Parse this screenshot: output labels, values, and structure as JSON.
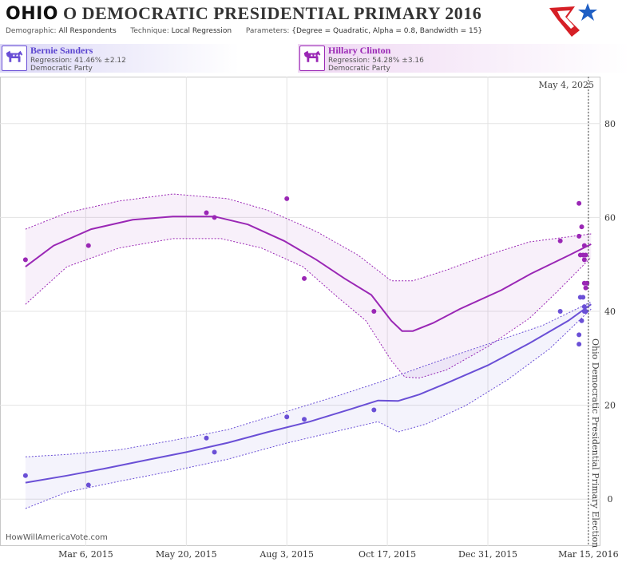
{
  "header": {
    "state": "OHIO",
    "title_rest": "O DEMOCRATIC PRESIDENTIAL PRIMARY 2016",
    "demographic_label": "Demographic:",
    "demographic_value": "All Respondents",
    "technique_label": "Technique:",
    "technique_value": "Local Regression",
    "parameters_label": "Parameters:",
    "parameters_value": "{Degree = Quadratic, Alpha = 0.8, Bandwidth = 15}"
  },
  "candidates": [
    {
      "name": "Bernie Sanders",
      "regression": "Regression: 41.46% ±2.12",
      "party": "Democratic Party",
      "color": "#6a4fd6"
    },
    {
      "name": "Hillary Clinton",
      "regression": "Regression: 54.28% ±3.16",
      "party": "Democratic Party",
      "color": "#9a27b5"
    }
  ],
  "watermark": "HowWillAmericaVote.com",
  "logo_icon": "flag-star-logo-icon",
  "chart_data": {
    "type": "line",
    "x_axis": {
      "type": "date",
      "ticks": [
        "Mar 6, 2015",
        "May 20, 2015",
        "Aug 3, 2015",
        "Oct 17, 2015",
        "Dec 31, 2015",
        "Mar 15, 2016"
      ]
    },
    "y_axis": {
      "position": "right",
      "ylim": [
        -10,
        90
      ],
      "ticks": [
        0,
        20,
        40,
        60,
        80
      ],
      "grid": true
    },
    "annotations": {
      "today_label": "May 4, 2025",
      "election_label": "Ohio Democratic Presidential Primary Election",
      "election_date": "2016-03-15"
    },
    "series": [
      {
        "name": "Hillary Clinton",
        "color": "#9a27b5",
        "trend": [
          [
            "2015-01-20",
            49.5
          ],
          [
            "2015-02-10",
            54
          ],
          [
            "2015-03-10",
            57.5
          ],
          [
            "2015-04-10",
            59.5
          ],
          [
            "2015-05-10",
            60.2
          ],
          [
            "2015-06-10",
            60.2
          ],
          [
            "2015-07-05",
            58.5
          ],
          [
            "2015-08-01",
            55
          ],
          [
            "2015-08-25",
            51
          ],
          [
            "2015-09-15",
            47
          ],
          [
            "2015-10-05",
            43.5
          ],
          [
            "2015-10-20",
            38
          ],
          [
            "2015-10-28",
            35.8
          ],
          [
            "2015-11-05",
            35.8
          ],
          [
            "2015-11-20",
            37.5
          ],
          [
            "2015-12-10",
            40.5
          ],
          [
            "2016-01-10",
            44.5
          ],
          [
            "2016-02-01",
            48
          ],
          [
            "2016-03-01",
            52
          ],
          [
            "2016-03-17",
            54.3
          ]
        ],
        "upper": [
          [
            "2015-01-20",
            57.5
          ],
          [
            "2015-02-20",
            61
          ],
          [
            "2015-03-31",
            63.5
          ],
          [
            "2015-05-10",
            65
          ],
          [
            "2015-06-20",
            64
          ],
          [
            "2015-07-20",
            61.5
          ],
          [
            "2015-08-25",
            57
          ],
          [
            "2015-09-25",
            52
          ],
          [
            "2015-10-20",
            46.5
          ],
          [
            "2015-11-05",
            46.5
          ],
          [
            "2015-11-30",
            48.8
          ],
          [
            "2015-12-31",
            52
          ],
          [
            "2016-01-31",
            54.8
          ],
          [
            "2016-03-17",
            56.5
          ]
        ],
        "lower": [
          [
            "2015-01-20",
            41.5
          ],
          [
            "2015-02-20",
            49.5
          ],
          [
            "2015-03-31",
            53.5
          ],
          [
            "2015-05-10",
            55.5
          ],
          [
            "2015-06-15",
            55.5
          ],
          [
            "2015-07-15",
            53.5
          ],
          [
            "2015-08-15",
            49.5
          ],
          [
            "2015-09-10",
            43
          ],
          [
            "2015-10-01",
            38
          ],
          [
            "2015-10-20",
            29.5
          ],
          [
            "2015-10-30",
            26
          ],
          [
            "2015-11-10",
            25.8
          ],
          [
            "2015-11-30",
            27.5
          ],
          [
            "2015-12-31",
            32.5
          ],
          [
            "2016-01-31",
            38.5
          ],
          [
            "2016-02-20",
            44
          ],
          [
            "2016-03-17",
            51.5
          ]
        ],
        "points": [
          [
            "2015-01-20",
            51
          ],
          [
            "2015-03-08",
            54
          ],
          [
            "2015-06-04",
            61
          ],
          [
            "2015-06-10",
            60
          ],
          [
            "2015-08-03",
            64
          ],
          [
            "2015-08-16",
            47
          ],
          [
            "2015-10-07",
            40
          ],
          [
            "2016-02-23",
            55
          ],
          [
            "2016-03-08",
            63
          ],
          [
            "2016-03-08",
            56
          ],
          [
            "2016-03-09",
            52
          ],
          [
            "2016-03-10",
            58
          ],
          [
            "2016-03-11",
            52
          ],
          [
            "2016-03-12",
            54
          ],
          [
            "2016-03-12",
            51
          ],
          [
            "2016-03-12",
            46
          ],
          [
            "2016-03-13",
            45
          ],
          [
            "2016-03-13",
            52
          ],
          [
            "2016-03-14",
            46
          ]
        ]
      },
      {
        "name": "Bernie Sanders",
        "color": "#6a4fd6",
        "trend": [
          [
            "2015-01-20",
            3.5
          ],
          [
            "2015-02-20",
            5
          ],
          [
            "2015-03-20",
            6.5
          ],
          [
            "2015-04-20",
            8.3
          ],
          [
            "2015-05-20",
            10
          ],
          [
            "2015-06-20",
            12
          ],
          [
            "2015-07-20",
            14.3
          ],
          [
            "2015-08-20",
            16.5
          ],
          [
            "2015-09-20",
            19.2
          ],
          [
            "2015-10-10",
            21
          ],
          [
            "2015-10-25",
            20.9
          ],
          [
            "2015-11-10",
            22.3
          ],
          [
            "2015-12-01",
            24.8
          ],
          [
            "2015-12-31",
            28.5
          ],
          [
            "2016-01-31",
            33.2
          ],
          [
            "2016-02-29",
            38
          ],
          [
            "2016-03-17",
            41.5
          ]
        ],
        "upper": [
          [
            "2015-01-20",
            9
          ],
          [
            "2015-02-20",
            9.5
          ],
          [
            "2015-03-31",
            10.5
          ],
          [
            "2015-05-10",
            12.5
          ],
          [
            "2015-06-20",
            14.8
          ],
          [
            "2015-08-01",
            18.5
          ],
          [
            "2015-09-10",
            22
          ],
          [
            "2015-10-10",
            24.8
          ],
          [
            "2015-11-10",
            28
          ],
          [
            "2015-12-10",
            31
          ],
          [
            "2016-01-10",
            34
          ],
          [
            "2016-02-10",
            37
          ],
          [
            "2016-03-17",
            42
          ]
        ],
        "lower": [
          [
            "2015-01-20",
            -2
          ],
          [
            "2015-02-20",
            1.5
          ],
          [
            "2015-03-31",
            3.8
          ],
          [
            "2015-05-10",
            6
          ],
          [
            "2015-06-20",
            8.5
          ],
          [
            "2015-08-01",
            11.8
          ],
          [
            "2015-09-10",
            14.5
          ],
          [
            "2015-10-10",
            16.5
          ],
          [
            "2015-10-25",
            14.3
          ],
          [
            "2015-11-15",
            16
          ],
          [
            "2015-12-15",
            20
          ],
          [
            "2016-01-15",
            25.5
          ],
          [
            "2016-02-15",
            32
          ],
          [
            "2016-03-17",
            40.5
          ]
        ],
        "points": [
          [
            "2015-01-20",
            5
          ],
          [
            "2015-03-08",
            3
          ],
          [
            "2015-06-04",
            13
          ],
          [
            "2015-06-10",
            10
          ],
          [
            "2015-08-03",
            17.5
          ],
          [
            "2015-08-16",
            17
          ],
          [
            "2015-10-07",
            19
          ],
          [
            "2016-02-23",
            40
          ],
          [
            "2016-03-08",
            35
          ],
          [
            "2016-03-08",
            33
          ],
          [
            "2016-03-09",
            43
          ],
          [
            "2016-03-10",
            38
          ],
          [
            "2016-03-11",
            43
          ],
          [
            "2016-03-12",
            41
          ],
          [
            "2016-03-12",
            40
          ],
          [
            "2016-03-13",
            40
          ]
        ]
      }
    ]
  }
}
